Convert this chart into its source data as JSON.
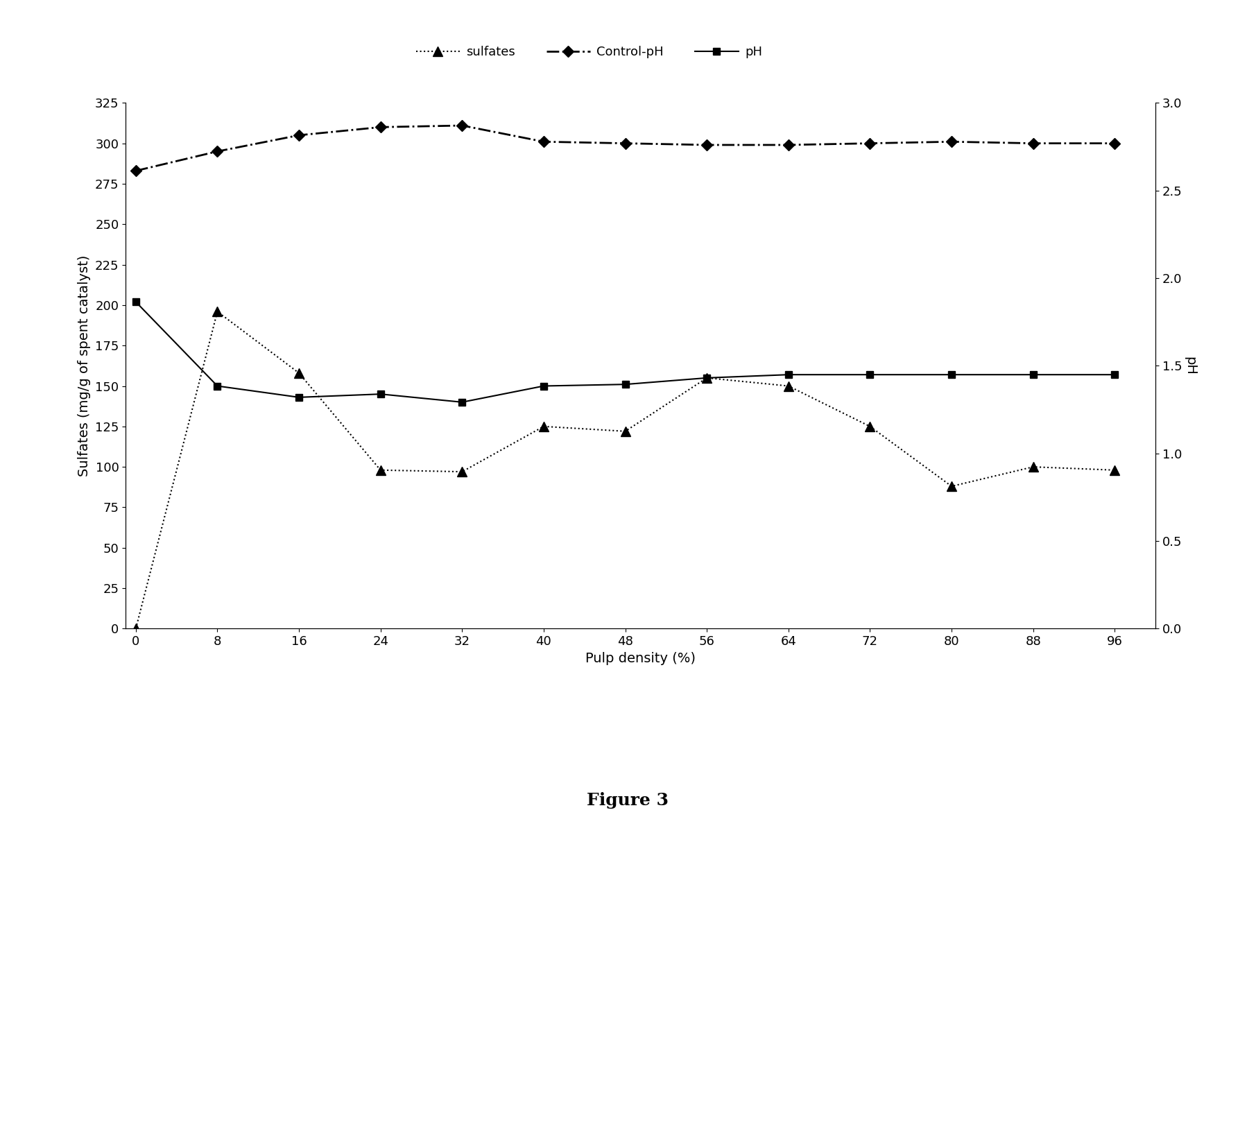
{
  "x": [
    0,
    8,
    16,
    24,
    32,
    40,
    48,
    56,
    64,
    72,
    80,
    88,
    96
  ],
  "sulfates": [
    0,
    196,
    158,
    98,
    97,
    125,
    122,
    155,
    150,
    125,
    88,
    100,
    98
  ],
  "control_ph_left": [
    283,
    295,
    305,
    310,
    311,
    301,
    300,
    299,
    299,
    300,
    301,
    300,
    300
  ],
  "ph_left": [
    202,
    150,
    143,
    145,
    140,
    150,
    151,
    155,
    157,
    157,
    157,
    157,
    157
  ],
  "ylim_left": [
    0,
    325
  ],
  "ylim_right": [
    0,
    3
  ],
  "yticks_left": [
    0,
    25,
    50,
    75,
    100,
    125,
    150,
    175,
    200,
    225,
    250,
    275,
    300,
    325
  ],
  "yticks_right": [
    0,
    0.5,
    1,
    1.5,
    2,
    2.5,
    3
  ],
  "xticks": [
    0,
    8,
    16,
    24,
    32,
    40,
    48,
    56,
    64,
    72,
    80,
    88,
    96
  ],
  "xlabel": "Pulp density (%)",
  "ylabel_left": "Sulfates (mg/g of spent catalyst)",
  "ylabel_right": "pH",
  "legend_labels": [
    "sulfates",
    "Control-pH",
    "pH"
  ],
  "title": "Figure 3",
  "linewidth": 1.5,
  "markersize": 7,
  "figure_caption_fontsize": 18,
  "axis_label_fontsize": 14,
  "tick_fontsize": 13,
  "legend_fontsize": 13
}
